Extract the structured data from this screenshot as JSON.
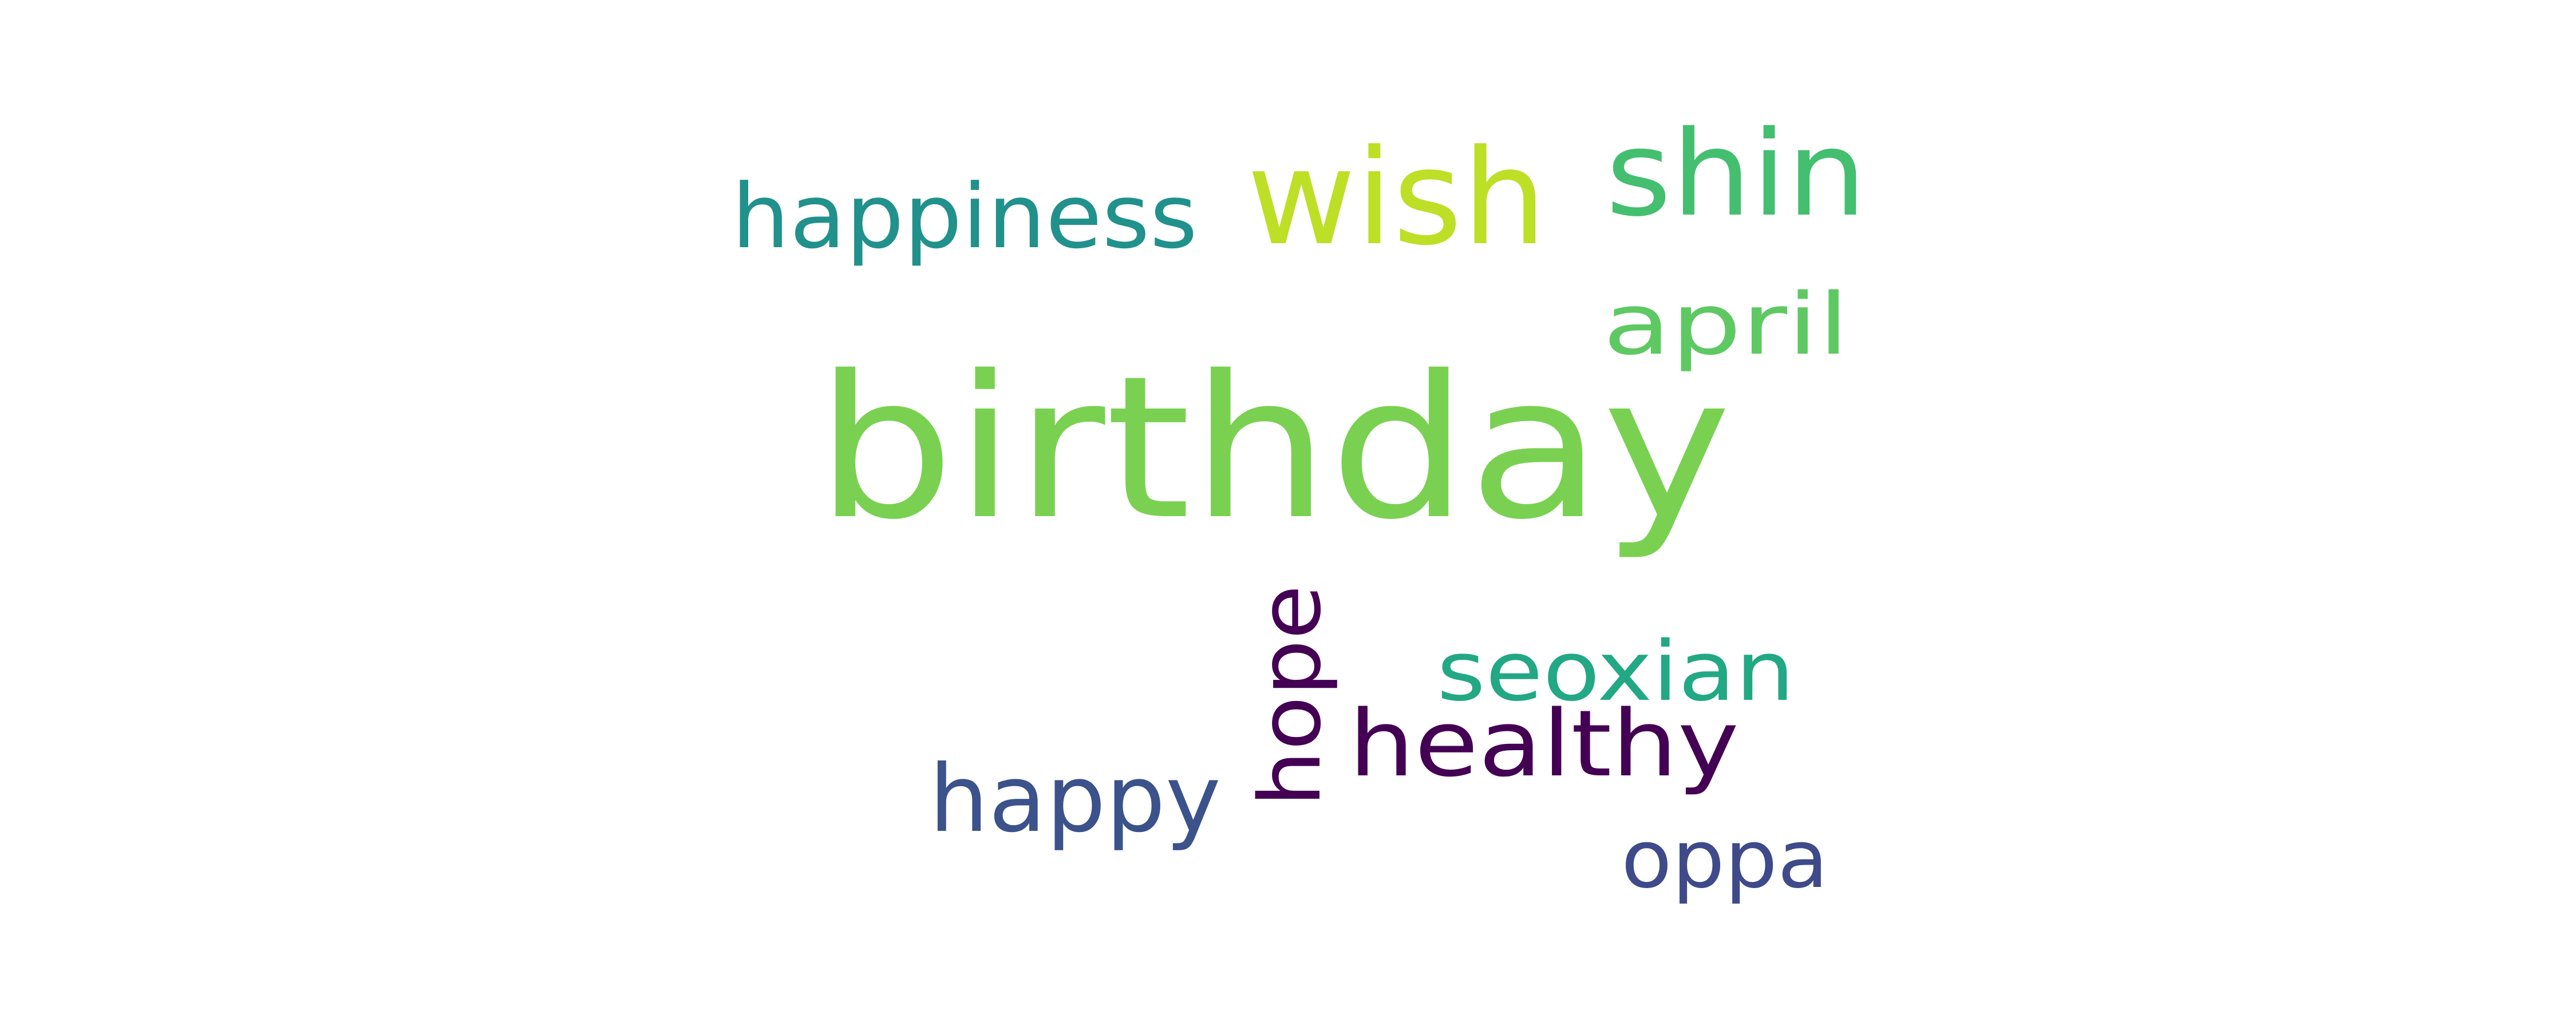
{
  "words": [
    {
      "key": "birthday",
      "text": "birthday",
      "color": "#7ad151"
    },
    {
      "key": "wish",
      "text": "wish",
      "color": "#bddf26"
    },
    {
      "key": "shin",
      "text": "shin",
      "color": "#44bf70"
    },
    {
      "key": "happiness",
      "text": "happiness",
      "color": "#21918c"
    },
    {
      "key": "april",
      "text": "april",
      "color": "#5ec962"
    },
    {
      "key": "seoxian",
      "text": "seoxian",
      "color": "#22a884"
    },
    {
      "key": "hope",
      "text": "hope",
      "color": "#440154"
    },
    {
      "key": "healthy",
      "text": "healthy",
      "color": "#440154"
    },
    {
      "key": "happy",
      "text": "happy",
      "color": "#3b528b"
    },
    {
      "key": "oppa",
      "text": "oppa",
      "color": "#3e4a89"
    }
  ]
}
